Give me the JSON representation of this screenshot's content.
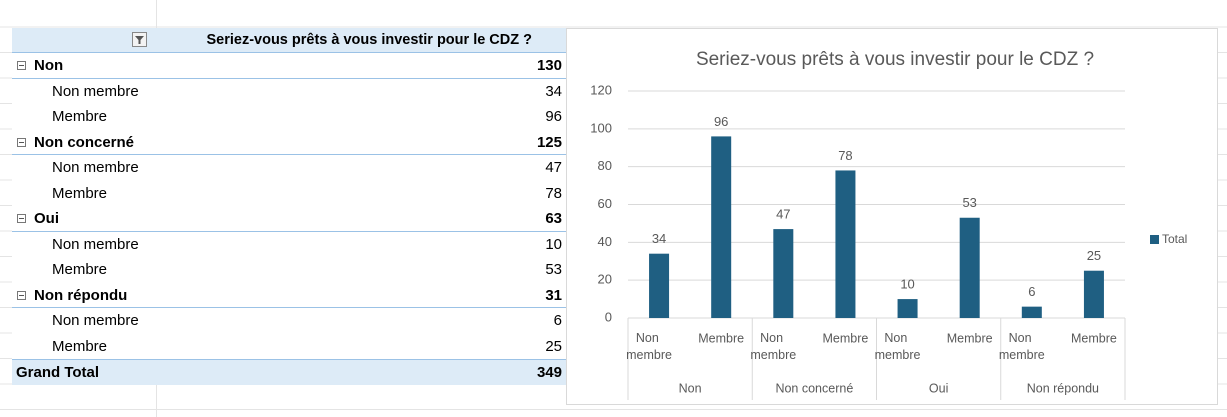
{
  "table": {
    "header": "Seriez-vous prêts à vous investir pour le CDZ ?",
    "groups": [
      {
        "label": "Non",
        "total": 130,
        "items": [
          {
            "label": "Non membre",
            "value": 34
          },
          {
            "label": "Membre",
            "value": 96
          }
        ]
      },
      {
        "label": "Non concerné",
        "total": 125,
        "items": [
          {
            "label": "Non membre",
            "value": 47
          },
          {
            "label": "Membre",
            "value": 78
          }
        ]
      },
      {
        "label": "Oui",
        "total": 63,
        "items": [
          {
            "label": "Non membre",
            "value": 10
          },
          {
            "label": "Membre",
            "value": 53
          }
        ]
      },
      {
        "label": "Non répondu",
        "total": 31,
        "items": [
          {
            "label": "Non membre",
            "value": 6
          },
          {
            "label": "Membre",
            "value": 25
          }
        ]
      }
    ],
    "grand_total": {
      "label": "Grand Total",
      "value": 349
    }
  },
  "chart_data": {
    "type": "bar",
    "title": "Seriez-vous prêts à vous investir pour le CDZ ?",
    "categories": [
      "Non membre",
      "Membre",
      "Non membre",
      "Membre",
      "Non membre",
      "Membre",
      "Non membre",
      "Membre"
    ],
    "groups": [
      "Non",
      "Non concerné",
      "Oui",
      "Non répondu"
    ],
    "series": [
      {
        "name": "Total",
        "color": "#1f5f82",
        "values": [
          34,
          96,
          47,
          78,
          10,
          53,
          6,
          25
        ]
      }
    ],
    "ylim": [
      0,
      120
    ],
    "yticks": [
      0,
      20,
      40,
      60,
      80,
      100,
      120
    ],
    "grid": true,
    "legend": "right"
  }
}
